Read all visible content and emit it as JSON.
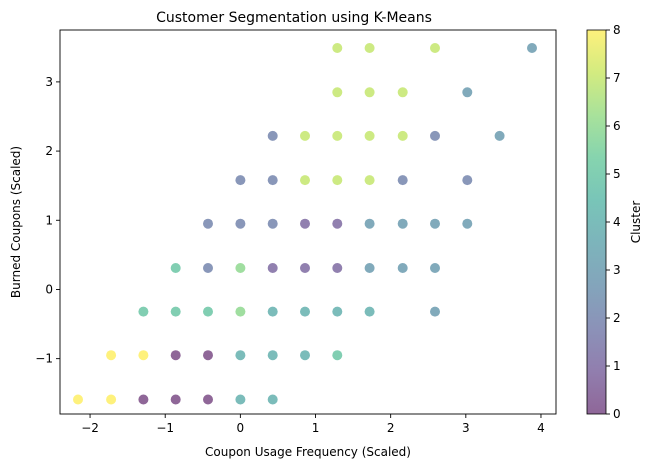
{
  "chart_data": {
    "type": "scatter",
    "title": "Customer Segmentation using K-Means",
    "xlabel": "Coupon Usage Frequency (Scaled)",
    "ylabel": "Burned Coupons (Scaled)",
    "xlim": [
      -2.4,
      4.2
    ],
    "ylim": [
      -1.8,
      3.75
    ],
    "xticks": [
      -2,
      -1,
      0,
      1,
      2,
      3,
      4
    ],
    "xtick_labels": [
      "−2",
      "−1",
      "0",
      "1",
      "2",
      "3",
      "4"
    ],
    "yticks": [
      -1,
      0,
      1,
      2,
      3
    ],
    "ytick_labels": [
      "−1",
      "0",
      "1",
      "2",
      "3"
    ],
    "grid": false,
    "colormap": "viridis",
    "marker_alpha": 0.6,
    "colorbar": {
      "label": "Cluster",
      "range": [
        0,
        8
      ],
      "ticks": [
        0,
        1,
        2,
        3,
        4,
        5,
        6,
        7,
        8
      ],
      "tick_labels": [
        "0",
        "1",
        "2",
        "3",
        "4",
        "5",
        "6",
        "7",
        "8"
      ]
    },
    "points": [
      {
        "x": -2.16,
        "y": -1.59,
        "cluster": 8
      },
      {
        "x": -1.72,
        "y": -1.59,
        "cluster": 8
      },
      {
        "x": -1.29,
        "y": -1.59,
        "cluster": 0
      },
      {
        "x": -0.86,
        "y": -1.59,
        "cluster": 0
      },
      {
        "x": -0.43,
        "y": -1.59,
        "cluster": 0
      },
      {
        "x": 0.0,
        "y": -1.59,
        "cluster": 4
      },
      {
        "x": 0.43,
        "y": -1.59,
        "cluster": 4
      },
      {
        "x": -1.72,
        "y": -0.95,
        "cluster": 8
      },
      {
        "x": -1.29,
        "y": -0.95,
        "cluster": 8
      },
      {
        "x": -0.86,
        "y": -0.95,
        "cluster": 0
      },
      {
        "x": -0.43,
        "y": -0.95,
        "cluster": 0
      },
      {
        "x": 0.0,
        "y": -0.95,
        "cluster": 4
      },
      {
        "x": 0.43,
        "y": -0.95,
        "cluster": 4
      },
      {
        "x": 0.86,
        "y": -0.95,
        "cluster": 4
      },
      {
        "x": 1.29,
        "y": -0.95,
        "cluster": 5
      },
      {
        "x": -1.29,
        "y": -0.32,
        "cluster": 5
      },
      {
        "x": -0.86,
        "y": -0.32,
        "cluster": 5
      },
      {
        "x": -0.43,
        "y": -0.32,
        "cluster": 5
      },
      {
        "x": 0.0,
        "y": -0.32,
        "cluster": 6
      },
      {
        "x": 0.43,
        "y": -0.32,
        "cluster": 4
      },
      {
        "x": 0.86,
        "y": -0.32,
        "cluster": 4
      },
      {
        "x": 1.29,
        "y": -0.32,
        "cluster": 4
      },
      {
        "x": 1.72,
        "y": -0.32,
        "cluster": 4
      },
      {
        "x": 2.59,
        "y": -0.32,
        "cluster": 3
      },
      {
        "x": -0.86,
        "y": 0.31,
        "cluster": 5
      },
      {
        "x": -0.43,
        "y": 0.31,
        "cluster": 2
      },
      {
        "x": 0.0,
        "y": 0.31,
        "cluster": 6
      },
      {
        "x": 0.43,
        "y": 0.31,
        "cluster": 1
      },
      {
        "x": 0.86,
        "y": 0.31,
        "cluster": 1
      },
      {
        "x": 1.29,
        "y": 0.31,
        "cluster": 1
      },
      {
        "x": 1.72,
        "y": 0.31,
        "cluster": 3
      },
      {
        "x": 2.16,
        "y": 0.31,
        "cluster": 3
      },
      {
        "x": 2.59,
        "y": 0.31,
        "cluster": 3
      },
      {
        "x": -0.43,
        "y": 0.95,
        "cluster": 2
      },
      {
        "x": 0.0,
        "y": 0.95,
        "cluster": 2
      },
      {
        "x": 0.43,
        "y": 0.95,
        "cluster": 2
      },
      {
        "x": 0.86,
        "y": 0.95,
        "cluster": 1
      },
      {
        "x": 1.29,
        "y": 0.95,
        "cluster": 1
      },
      {
        "x": 1.72,
        "y": 0.95,
        "cluster": 3
      },
      {
        "x": 2.16,
        "y": 0.95,
        "cluster": 3
      },
      {
        "x": 2.59,
        "y": 0.95,
        "cluster": 3
      },
      {
        "x": 3.02,
        "y": 0.95,
        "cluster": 3
      },
      {
        "x": 0.0,
        "y": 1.58,
        "cluster": 2
      },
      {
        "x": 0.43,
        "y": 1.58,
        "cluster": 2
      },
      {
        "x": 0.86,
        "y": 1.58,
        "cluster": 7
      },
      {
        "x": 1.29,
        "y": 1.58,
        "cluster": 7
      },
      {
        "x": 1.72,
        "y": 1.58,
        "cluster": 7
      },
      {
        "x": 2.16,
        "y": 1.58,
        "cluster": 2
      },
      {
        "x": 3.02,
        "y": 1.58,
        "cluster": 2
      },
      {
        "x": 0.43,
        "y": 2.22,
        "cluster": 2
      },
      {
        "x": 0.86,
        "y": 2.22,
        "cluster": 7
      },
      {
        "x": 1.29,
        "y": 2.22,
        "cluster": 7
      },
      {
        "x": 1.72,
        "y": 2.22,
        "cluster": 7
      },
      {
        "x": 2.16,
        "y": 2.22,
        "cluster": 7
      },
      {
        "x": 2.59,
        "y": 2.22,
        "cluster": 2
      },
      {
        "x": 3.45,
        "y": 2.22,
        "cluster": 3
      },
      {
        "x": 1.29,
        "y": 2.85,
        "cluster": 7
      },
      {
        "x": 1.72,
        "y": 2.85,
        "cluster": 7
      },
      {
        "x": 2.16,
        "y": 2.85,
        "cluster": 7
      },
      {
        "x": 3.02,
        "y": 2.85,
        "cluster": 3
      },
      {
        "x": 1.29,
        "y": 3.49,
        "cluster": 7
      },
      {
        "x": 1.72,
        "y": 3.49,
        "cluster": 7
      },
      {
        "x": 2.59,
        "y": 3.49,
        "cluster": 7
      },
      {
        "x": 3.88,
        "y": 3.49,
        "cluster": 3
      }
    ]
  }
}
